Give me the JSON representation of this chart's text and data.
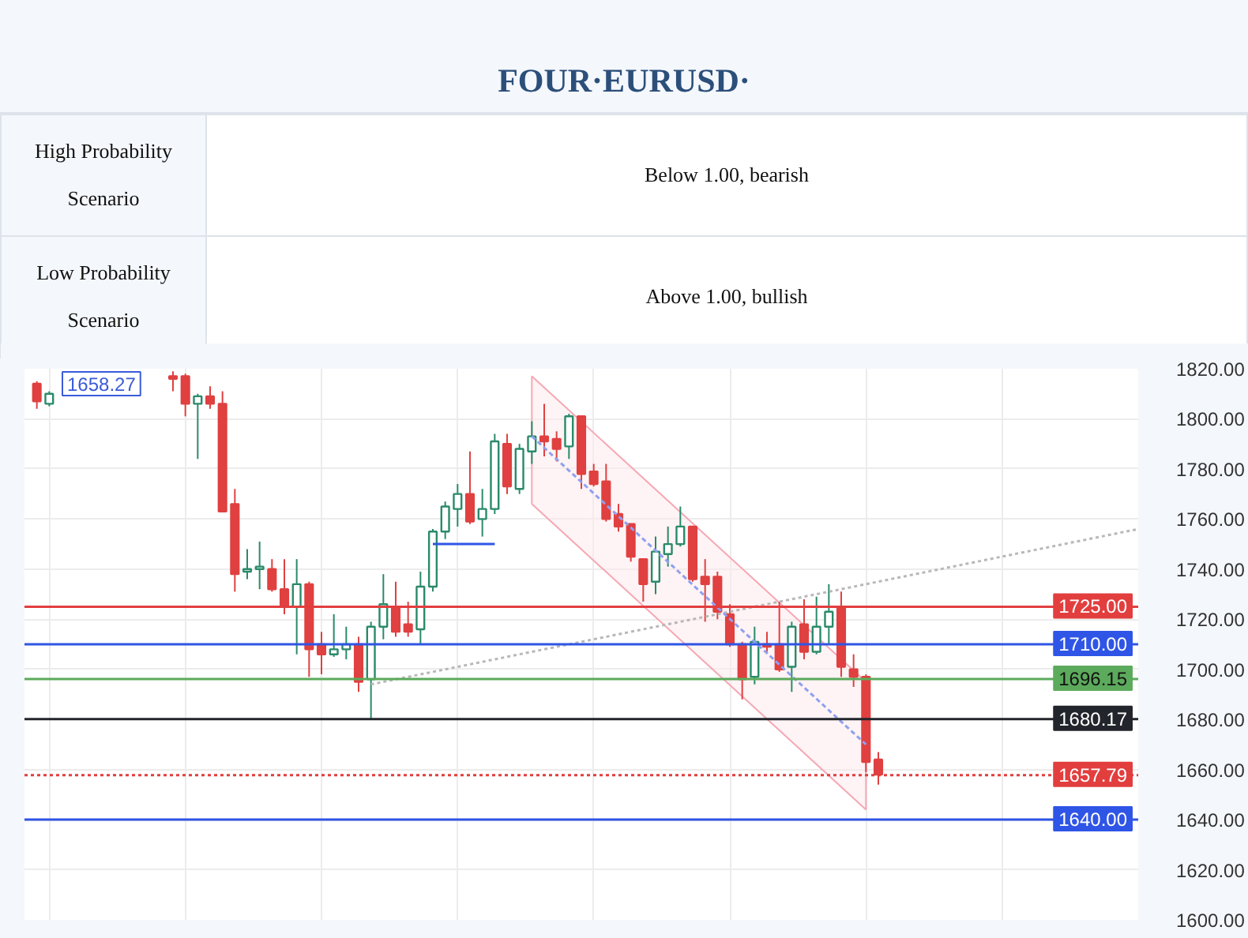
{
  "chart_data": {
    "type": "candlestick",
    "title": "FOUR·EURUSD·",
    "annotations": [
      "High Probability Scenario",
      "Below 1.00, bearish",
      "Low Probability Scenario",
      "Above 1.00, bullish",
      "1658.27"
    ],
    "categories": [
      null,
      null,
      null,
      null,
      null,
      null,
      null,
      null,
      null,
      null,
      null,
      null,
      null,
      null,
      null,
      null,
      null,
      null,
      null,
      null,
      null,
      null,
      null,
      null,
      null,
      null,
      null,
      null,
      null,
      null,
      null,
      null,
      null,
      null,
      null,
      null,
      null,
      null,
      null,
      null,
      null,
      null,
      null,
      null,
      null,
      null,
      null,
      null,
      null,
      null,
      null,
      null,
      null,
      null,
      null,
      null,
      null,
      null,
      null,
      null,
      null,
      null,
      null,
      null,
      null,
      null,
      null,
      null,
      null,
      null,
      null,
      null,
      null,
      null,
      null,
      null,
      null,
      null,
      null,
      null,
      null,
      null,
      null,
      null,
      null,
      null,
      null,
      null,
      null,
      null
    ],
    "ohlc": [
      [
        1814,
        1815,
        1804,
        1807
      ],
      [
        1806,
        1811,
        1805,
        1810
      ],
      null,
      null,
      null,
      null,
      null,
      null,
      null,
      null,
      null,
      [
        1817,
        1819,
        1811,
        1816
      ],
      [
        1817,
        1818,
        1801,
        1806
      ],
      [
        1806,
        1810,
        1784,
        1809
      ],
      [
        1809,
        1813,
        1804,
        1806
      ],
      [
        1806,
        1811,
        1763,
        1763
      ],
      [
        1766,
        1772,
        1731,
        1738
      ],
      [
        1739,
        1748,
        1736,
        1740
      ],
      [
        1740,
        1751,
        1732,
        1741
      ],
      [
        1740,
        1744,
        1731,
        1732
      ],
      [
        1732,
        1744,
        1722,
        1725
      ],
      [
        1725,
        1744,
        1706,
        1734
      ],
      [
        1734,
        1735,
        1697,
        1708
      ],
      [
        1710,
        1715,
        1698,
        1706
      ],
      [
        1706,
        1722,
        1705,
        1708
      ],
      [
        1708,
        1717,
        1704,
        1710
      ],
      [
        1710,
        1713,
        1691,
        1695
      ],
      [
        1696,
        1719,
        1680,
        1717
      ],
      [
        1717,
        1738,
        1712,
        1726
      ],
      [
        1725,
        1735,
        1713,
        1715
      ],
      [
        1718,
        1727,
        1713,
        1715
      ],
      [
        1716,
        1739,
        1710,
        1733
      ],
      [
        1733,
        1756,
        1731,
        1755
      ],
      [
        1755,
        1767,
        1752,
        1765
      ],
      [
        1764,
        1774,
        1757,
        1770
      ],
      [
        1770,
        1787,
        1758,
        1759
      ],
      [
        1760,
        1772,
        1753,
        1764
      ],
      [
        1764,
        1794,
        1762,
        1791
      ],
      [
        1790,
        1794,
        1770,
        1773
      ],
      [
        1772,
        1790,
        1770,
        1788
      ],
      [
        1787,
        1799,
        1782,
        1793
      ],
      [
        1793,
        1806,
        1785,
        1791
      ],
      [
        1792,
        1795,
        1783,
        1788
      ],
      [
        1789,
        1802,
        1784,
        1801
      ],
      [
        1801,
        1801,
        1772,
        1778
      ],
      [
        1779,
        1782,
        1773,
        1774
      ],
      [
        1775,
        1782,
        1759,
        1760
      ],
      [
        1762,
        1766,
        1755,
        1757
      ],
      [
        1758,
        1758,
        1743,
        1745
      ],
      [
        1744,
        1744,
        1727,
        1734
      ],
      [
        1735,
        1753,
        1730,
        1747
      ],
      [
        1746,
        1757,
        1741,
        1750
      ],
      [
        1750,
        1765,
        1749,
        1757
      ],
      [
        1757,
        1757,
        1735,
        1736
      ],
      [
        1737,
        1744,
        1719,
        1734
      ],
      [
        1737,
        1739,
        1720,
        1723
      ],
      [
        1722,
        1726,
        1709,
        1710
      ],
      [
        1710,
        1711,
        1688,
        1696
      ],
      [
        1697,
        1717,
        1694,
        1711
      ],
      [
        1710,
        1715,
        1707,
        1709
      ],
      [
        1710,
        1727,
        1699,
        1700
      ],
      [
        1701,
        1719,
        1691,
        1717
      ],
      [
        1718,
        1728,
        1704,
        1707
      ],
      [
        1707,
        1729,
        1706,
        1717
      ],
      [
        1717,
        1734,
        1710,
        1723
      ],
      [
        1725,
        1731,
        1697,
        1701
      ],
      [
        1700,
        1706,
        1693,
        1697
      ],
      [
        1697,
        1698,
        1659,
        1663
      ],
      [
        1664,
        1667,
        1654,
        1658
      ],
      null,
      null,
      null,
      null,
      null,
      null,
      null,
      null,
      null,
      null,
      null,
      null,
      null,
      null,
      null,
      null,
      null,
      null,
      null,
      null,
      null
    ],
    "series": [
      {
        "type": "line",
        "color": "#b8b8b8",
        "line_style": "dotted",
        "values": [
          null,
          null,
          null,
          null,
          null,
          null,
          null,
          null,
          null,
          null,
          null,
          null,
          null,
          null,
          null,
          null,
          null,
          null,
          null,
          null,
          null,
          null,
          null,
          null,
          null,
          null,
          null,
          1694,
          null,
          null,
          null,
          null,
          null,
          null,
          null,
          null,
          null,
          null,
          null,
          null,
          null,
          null,
          null,
          null,
          null,
          null,
          null,
          null,
          null,
          null,
          null,
          null,
          null,
          null,
          null,
          null,
          null,
          null,
          null,
          null,
          null,
          null,
          null,
          null,
          null,
          null,
          null,
          null,
          null,
          null,
          null,
          null,
          null,
          null,
          null,
          null,
          null,
          null,
          null,
          null,
          null,
          null,
          null,
          null,
          null,
          null,
          null,
          null,
          null,
          1756
        ]
      },
      {
        "type": "line",
        "color": "#8fa0f0",
        "line_style": "dashed",
        "values": [
          null,
          null,
          null,
          null,
          null,
          null,
          null,
          null,
          null,
          null,
          null,
          null,
          null,
          null,
          null,
          null,
          null,
          null,
          null,
          null,
          null,
          null,
          null,
          null,
          null,
          null,
          null,
          null,
          null,
          null,
          null,
          null,
          null,
          null,
          null,
          null,
          null,
          null,
          null,
          null,
          1793,
          null,
          null,
          null,
          null,
          null,
          null,
          null,
          null,
          null,
          null,
          null,
          null,
          null,
          null,
          null,
          null,
          null,
          null,
          null,
          null,
          null,
          null,
          null,
          null,
          null,
          null,
          1670,
          null,
          null,
          null,
          null,
          null,
          null,
          null,
          null,
          null,
          null,
          null,
          null,
          null,
          null,
          null,
          null,
          null,
          null,
          null,
          null,
          null,
          null
        ],
        "lower": [
          null,
          null,
          null,
          null,
          null,
          null,
          null,
          null,
          null,
          null,
          null,
          null,
          null,
          null,
          null,
          null,
          null,
          null,
          null,
          null,
          null,
          null,
          null,
          null,
          null,
          null,
          null,
          null,
          null,
          null,
          null,
          null,
          null,
          null,
          null,
          null,
          null,
          null,
          null,
          null,
          1766,
          null,
          null,
          null,
          null,
          null,
          null,
          null,
          null,
          null,
          null,
          null,
          null,
          null,
          null,
          null,
          null,
          null,
          null,
          null,
          null,
          null,
          null,
          null,
          null,
          null,
          null,
          1644,
          null,
          null,
          null,
          null,
          null,
          null,
          null,
          null,
          null,
          null,
          null,
          null,
          null,
          null,
          null,
          null,
          null,
          null,
          null,
          null,
          null,
          null
        ],
        "upper": [
          null,
          null,
          null,
          null,
          null,
          null,
          null,
          null,
          null,
          null,
          null,
          null,
          null,
          null,
          null,
          null,
          null,
          null,
          null,
          null,
          null,
          null,
          null,
          null,
          null,
          null,
          null,
          null,
          null,
          null,
          null,
          null,
          null,
          null,
          null,
          null,
          null,
          null,
          null,
          null,
          1817,
          null,
          null,
          null,
          null,
          null,
          null,
          null,
          null,
          null,
          null,
          null,
          null,
          null,
          null,
          null,
          null,
          null,
          null,
          null,
          null,
          null,
          null,
          null,
          null,
          null,
          null,
          1695,
          null,
          null,
          null,
          null,
          null,
          null,
          null,
          null,
          null,
          null,
          null,
          null,
          null,
          null,
          null,
          null,
          null,
          null,
          null,
          null,
          null,
          null
        ]
      },
      {
        "type": "line",
        "color": "#2f55e6",
        "line_style": "solid",
        "values": [
          null,
          null,
          null,
          null,
          null,
          null,
          null,
          null,
          null,
          null,
          null,
          null,
          null,
          null,
          null,
          null,
          null,
          null,
          null,
          null,
          null,
          null,
          null,
          null,
          null,
          null,
          null,
          null,
          null,
          null,
          null,
          null,
          1750,
          null,
          null,
          null,
          null,
          1750,
          null,
          null,
          null,
          null,
          null,
          null,
          null,
          null,
          null,
          null,
          null,
          null,
          null,
          null,
          null,
          null,
          null,
          null,
          null,
          null,
          null,
          null,
          null,
          null,
          null,
          null,
          null,
          null,
          null,
          null,
          null,
          null,
          null,
          null,
          null,
          null,
          null,
          null,
          null,
          null,
          null,
          null,
          null,
          null,
          null,
          null,
          null,
          null,
          null,
          null,
          null,
          null
        ]
      }
    ],
    "ref_lines": [
      {
        "axis": "y",
        "value": 1725,
        "label": "1725.00",
        "color": "#e23e3e",
        "line_style": "solid"
      },
      {
        "axis": "y",
        "value": 1710,
        "label": "1710.00",
        "color": "#2f55e6",
        "line_style": "solid"
      },
      {
        "axis": "y",
        "value": 1696.15,
        "label": "1696.15",
        "color": "#5caa5c",
        "line_style": "solid"
      },
      {
        "axis": "y",
        "value": 1680.17,
        "label": "1680.17",
        "color": "#22252b",
        "line_style": "solid"
      },
      {
        "axis": "y",
        "value": 1657.79,
        "label": "1657.79",
        "color": "#e23e3e",
        "line_style": "dotted"
      },
      {
        "axis": "y",
        "value": 1640,
        "label": "1640.00",
        "color": "#2f55e6",
        "line_style": "solid"
      }
    ],
    "ylim": [
      1600,
      1820
    ],
    "yticks": [
      {
        "value": 1600,
        "label": "1600.00"
      },
      {
        "value": 1620,
        "label": "1620.00"
      },
      {
        "value": 1640,
        "label": "1640.00"
      },
      {
        "value": 1660,
        "label": "1660.00"
      },
      {
        "value": 1680,
        "label": "1680.00"
      },
      {
        "value": 1700,
        "label": "1700.00"
      },
      {
        "value": 1720,
        "label": "1720.00"
      },
      {
        "value": 1740,
        "label": "1740.00"
      },
      {
        "value": 1760,
        "label": "1760.00"
      },
      {
        "value": 1780,
        "label": "1780.00"
      },
      {
        "value": 1800,
        "label": "1800.00"
      },
      {
        "value": 1820,
        "label": "1820.00"
      }
    ],
    "tick_labels": "y",
    "grid": true,
    "legend": false
  }
}
